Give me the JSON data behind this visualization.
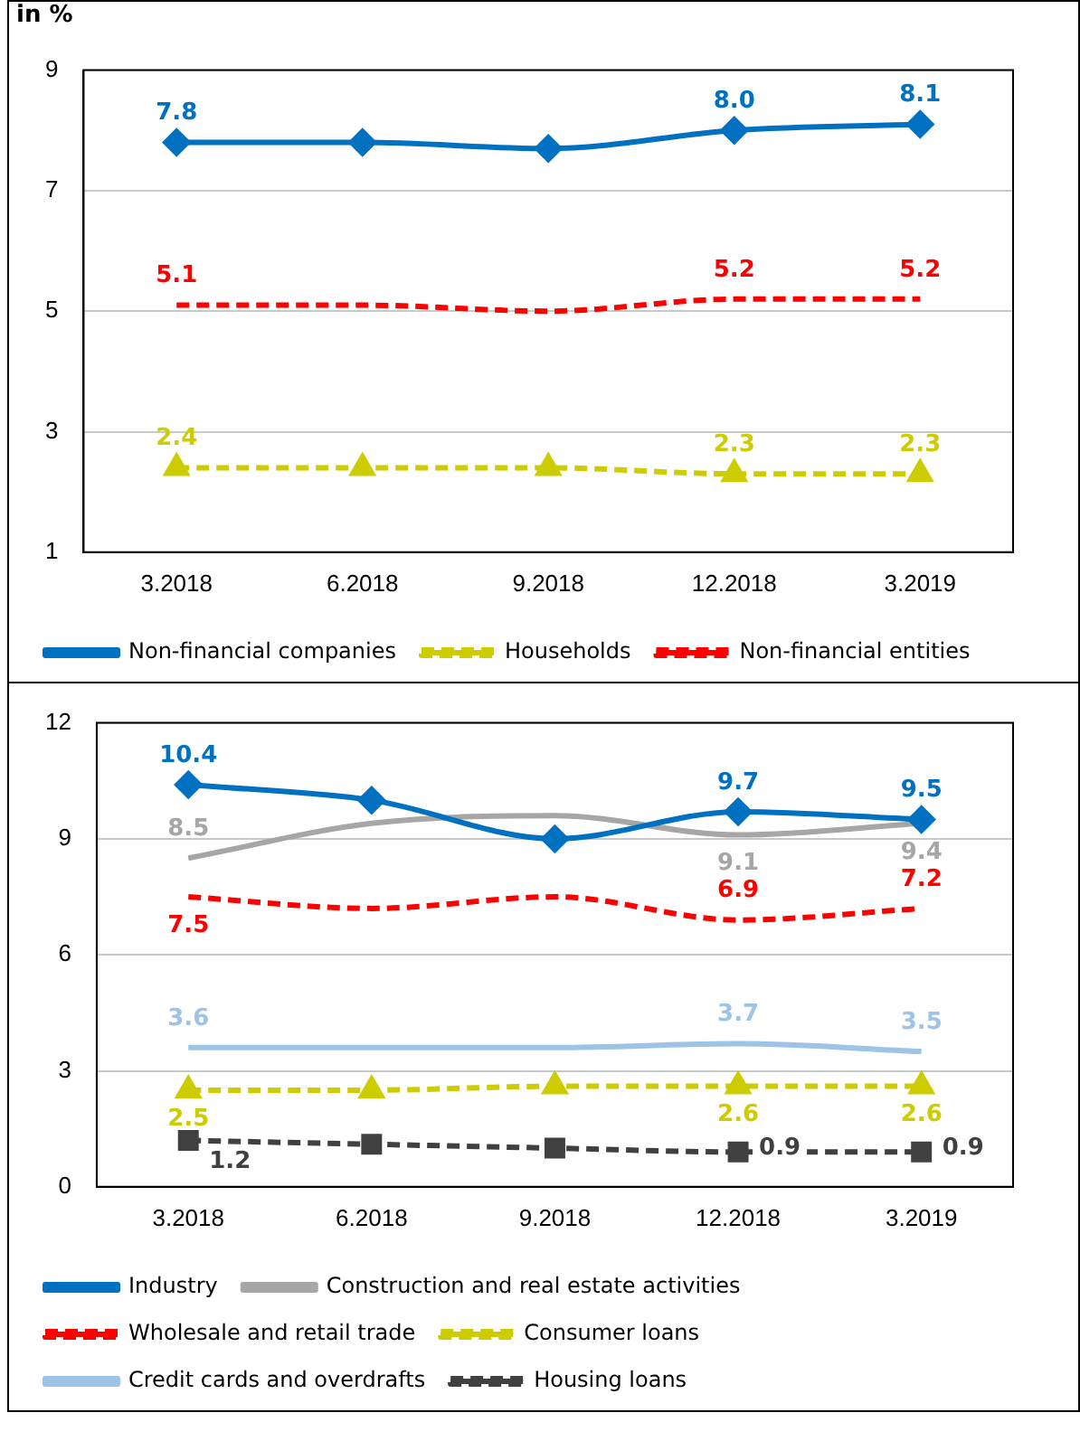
{
  "chart_data": [
    {
      "type": "line",
      "title": "in %",
      "categories": [
        "3.2018",
        "6.2018",
        "9.2018",
        "12.2018",
        "3.2019"
      ],
      "ylim": [
        1,
        9
      ],
      "yticks": [
        1,
        3,
        5,
        7,
        9
      ],
      "grid": "y",
      "legend": "bottom",
      "series": [
        {
          "name": "Non-financial companies",
          "color": "#0070c0",
          "marker": "diamond",
          "line_style": "solid",
          "values": [
            7.8,
            7.8,
            7.7,
            8.0,
            8.1
          ],
          "value_labels": [
            "7.8",
            null,
            null,
            "8.0",
            "8.1"
          ]
        },
        {
          "name": "Households",
          "color": "#cccc00",
          "marker": "triangle",
          "line_style": "dashed",
          "values": [
            2.4,
            2.4,
            2.4,
            2.3,
            2.3
          ],
          "value_labels": [
            "2.4",
            null,
            null,
            "2.3",
            "2.3"
          ]
        },
        {
          "name": "Non-financial entities",
          "color": "#ff0000",
          "marker": "none",
          "line_style": "dashed",
          "values": [
            5.1,
            5.1,
            5.0,
            5.2,
            5.2
          ],
          "value_labels": [
            "5.1",
            null,
            null,
            "5.2",
            "5.2"
          ]
        }
      ]
    },
    {
      "type": "line",
      "categories": [
        "3.2018",
        "6.2018",
        "9.2018",
        "12.2018",
        "3.2019"
      ],
      "ylim": [
        0,
        12
      ],
      "yticks": [
        0,
        3,
        6,
        9,
        12
      ],
      "grid": "y",
      "legend": "bottom",
      "series": [
        {
          "name": "Industry",
          "color": "#0070c0",
          "marker": "diamond",
          "line_style": "solid",
          "values": [
            10.4,
            10.0,
            9.0,
            9.7,
            9.5
          ],
          "value_labels": [
            "10.4",
            null,
            null,
            "9.7",
            "9.5"
          ]
        },
        {
          "name": "Construction and real estate activities",
          "color": "#a6a6a6",
          "marker": "none",
          "line_style": "solid",
          "values": [
            8.5,
            9.4,
            9.6,
            9.1,
            9.4
          ],
          "value_labels": [
            "8.5",
            null,
            null,
            "9.1",
            "9.4"
          ]
        },
        {
          "name": "Wholesale and retail trade",
          "color": "#ff0000",
          "marker": "none",
          "line_style": "dashed",
          "values": [
            7.5,
            7.2,
            7.5,
            6.9,
            7.2
          ],
          "value_labels": [
            "7.5",
            null,
            null,
            "6.9",
            "7.2"
          ]
        },
        {
          "name": "Consumer loans",
          "color": "#cccc00",
          "marker": "triangle",
          "line_style": "dashed",
          "values": [
            2.5,
            2.5,
            2.6,
            2.6,
            2.6
          ],
          "value_labels": [
            "2.5",
            null,
            null,
            "2.6",
            "2.6"
          ]
        },
        {
          "name": "Credit cards and overdrafts",
          "color": "#9dc3e6",
          "marker": "none",
          "line_style": "solid",
          "values": [
            3.6,
            3.6,
            3.6,
            3.7,
            3.5
          ],
          "value_labels": [
            "3.6",
            null,
            null,
            "3.7",
            "3.5"
          ]
        },
        {
          "name": "Housing loans",
          "color": "#404040",
          "marker": "square",
          "line_style": "dashed",
          "values": [
            1.2,
            1.1,
            1.0,
            0.9,
            0.9
          ],
          "value_labels": [
            "1.2",
            null,
            null,
            "0.9",
            "0.9"
          ]
        }
      ]
    }
  ]
}
